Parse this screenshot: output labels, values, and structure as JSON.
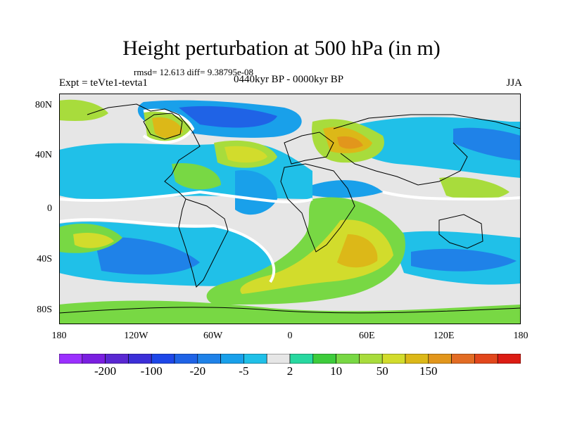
{
  "title": "Height perturbation at 500 hPa (in m)",
  "stats": "rmsd= 12.613 diff= 9.38795e-08",
  "left_label": "Expt = teVte1-tevta1",
  "center_label": "0440kyr BP - 0000kyr BP",
  "right_label": "JJA",
  "lat_ticks": [
    "80N",
    "40N",
    "0",
    "40S",
    "80S"
  ],
  "lon_ticks": [
    "180",
    "120W",
    "60W",
    "0",
    "60E",
    "120E",
    "180"
  ],
  "colorbar": {
    "colors": [
      "#9b30ff",
      "#7a1fe0",
      "#5a28d2",
      "#3c2fd8",
      "#1e47e8",
      "#1f63e6",
      "#1f82e8",
      "#19a0ea",
      "#20c0e8",
      "#e6e6e6",
      "#28d8a0",
      "#3ecc3c",
      "#78d844",
      "#a8dc3c",
      "#d2dc2c",
      "#dcb818",
      "#e2961c",
      "#e26c24",
      "#e2471c",
      "#dc1c14"
    ],
    "labels": [
      "-200",
      "-100",
      "-20",
      "-5",
      "2",
      "10",
      "50",
      "150"
    ]
  }
}
